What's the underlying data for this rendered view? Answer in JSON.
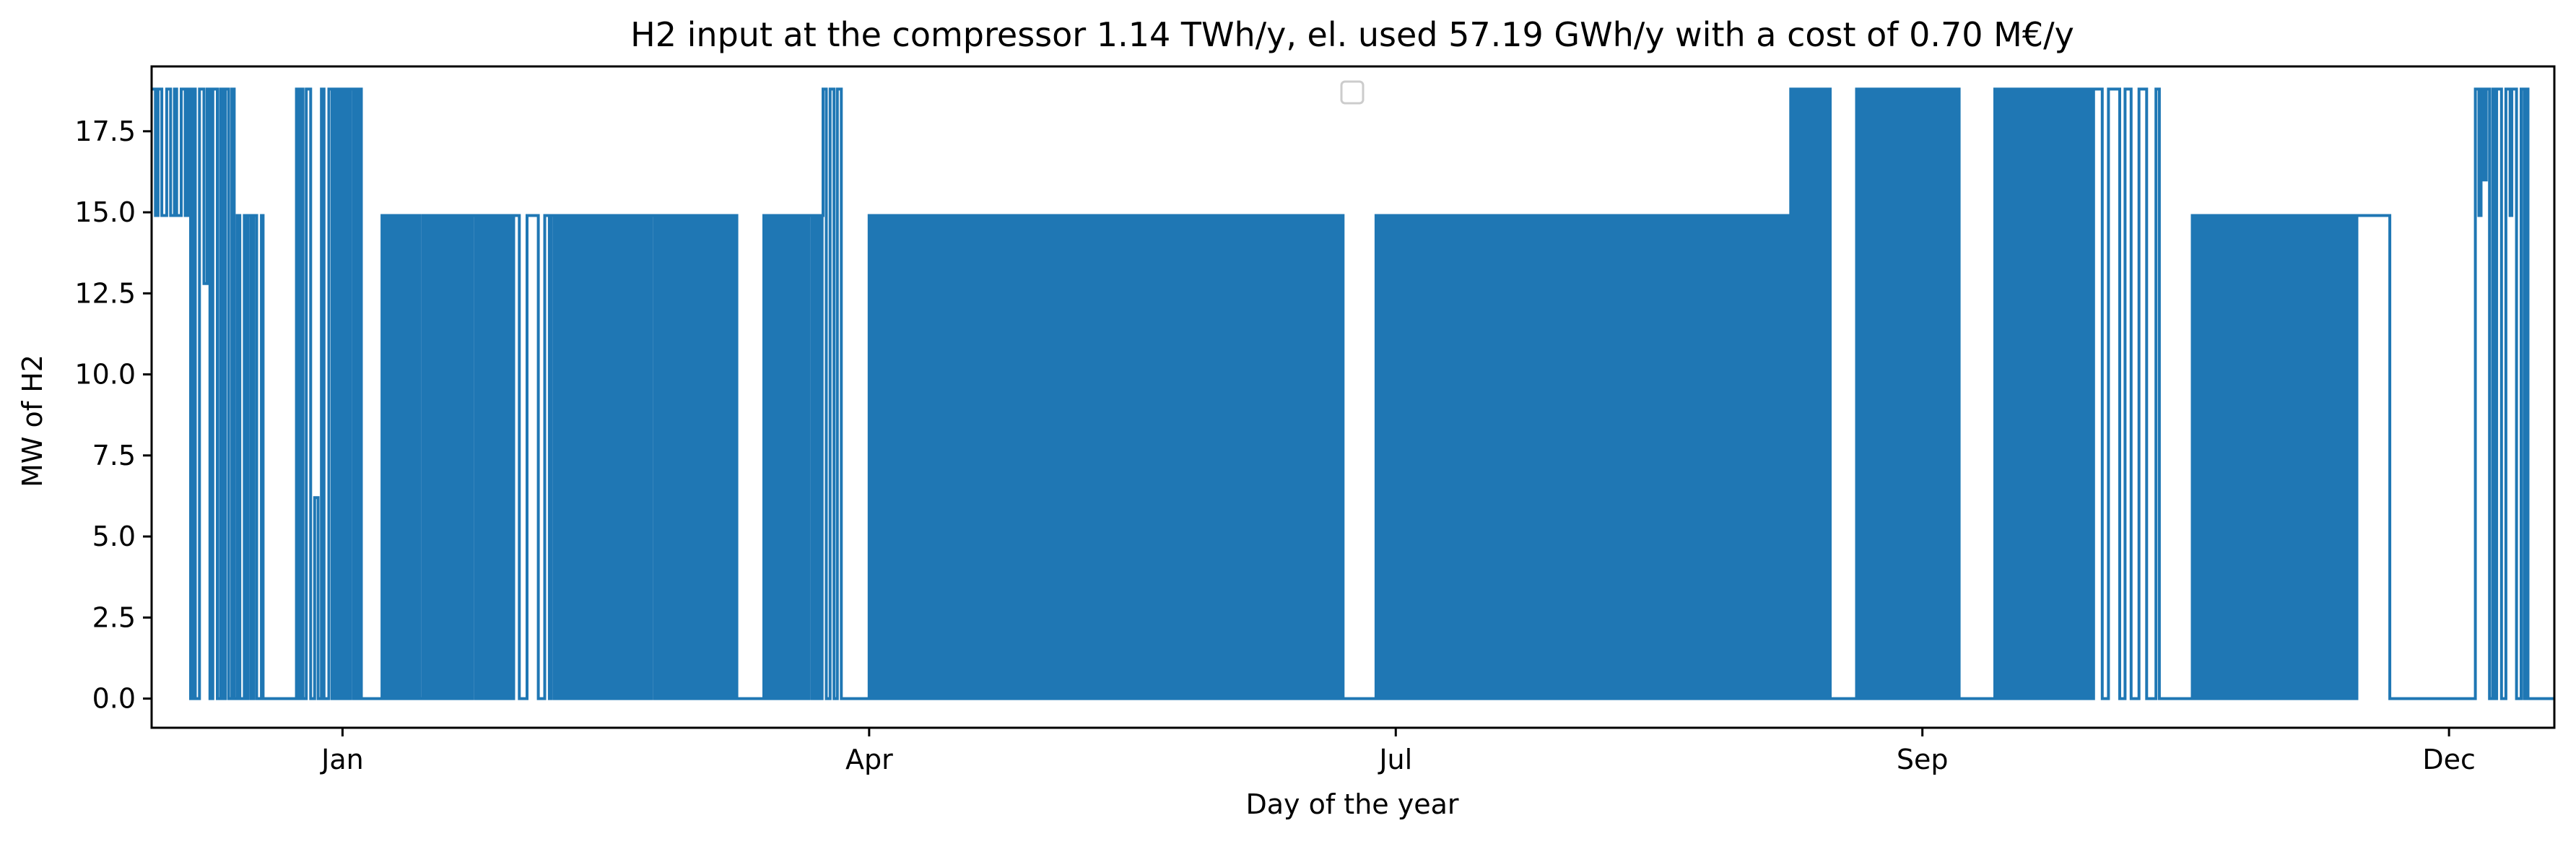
{
  "chart_data": {
    "type": "line",
    "title": "H2 input at the compressor 1.14 TWh/y, el. used 57.19 GWh/y with a cost of 0.70 M€/y",
    "xlabel": "Day of the year",
    "ylabel": "MW of H2",
    "x_unit": "day of year",
    "xlim": [
      -5,
      360
    ],
    "ylim": [
      -0.9,
      19.5
    ],
    "x_ticks": [
      {
        "label": "Jan",
        "value": 24
      },
      {
        "label": "Apr",
        "value": 104
      },
      {
        "label": "Jul",
        "value": 184
      },
      {
        "label": "Sep",
        "value": 264
      },
      {
        "label": "Dec",
        "value": 344
      }
    ],
    "y_ticks": [
      0.0,
      2.5,
      5.0,
      7.5,
      10.0,
      12.5,
      15.0,
      17.5
    ],
    "y_tick_labels": [
      "0.0",
      "2.5",
      "5.0",
      "7.5",
      "10.0",
      "12.5",
      "15.0",
      "17.5"
    ],
    "grid": false,
    "legend": {
      "position": "top-center",
      "entries": []
    },
    "series": [
      {
        "color": "#1f77b4",
        "levels": {
          "off": 0.0,
          "base": 14.9,
          "peak": 18.8
        },
        "segments": [
          {
            "x": [
              -5,
              0.5
            ],
            "mode": "toggle",
            "high": 18.8,
            "low": 14.9
          },
          {
            "x": [
              0.5,
              8
            ],
            "mode": "spiky",
            "high": 18.8,
            "low": 0.0,
            "extra": [
              12.8,
              14.9,
              4.8,
              3.3,
              0.8
            ]
          },
          {
            "x": [
              8,
              12
            ],
            "mode": "spiky",
            "high": 14.9,
            "low": 0.0,
            "extra": [
              13.4,
              10.2,
              6.2
            ]
          },
          {
            "x": [
              12,
              17
            ],
            "mode": "flat",
            "value": 0.0
          },
          {
            "x": [
              17,
              22
            ],
            "mode": "spiky",
            "high": 18.8,
            "low": 0.0,
            "extra": [
              6.2,
              1.0,
              17.0,
              8.1
            ]
          },
          {
            "x": [
              22,
              27
            ],
            "mode": "dense",
            "high": 18.8,
            "low": 0.0
          },
          {
            "x": [
              27,
              30
            ],
            "mode": "flat",
            "value": 0.0
          },
          {
            "x": [
              30,
              50
            ],
            "mode": "dense",
            "high": 14.9,
            "low": 0.0
          },
          {
            "x": [
              50,
              55
            ],
            "mode": "sparse",
            "high": 14.9,
            "low": 0.0
          },
          {
            "x": [
              55,
              75
            ],
            "mode": "dense",
            "high": 14.9,
            "low": 0.0
          },
          {
            "x": [
              75,
              84
            ],
            "mode": "dense",
            "high": 14.9,
            "low": 0.0
          },
          {
            "x": [
              84,
              88
            ],
            "mode": "flat",
            "value": 0.0
          },
          {
            "x": [
              88,
              97
            ],
            "mode": "dense",
            "high": 14.9,
            "low": 0.0
          },
          {
            "x": [
              97,
              100
            ],
            "mode": "spiky",
            "high": 18.8,
            "low": 0.0,
            "extra": [
              6.2,
              9.7
            ]
          },
          {
            "x": [
              100,
              104
            ],
            "mode": "flat",
            "value": 0.0
          },
          {
            "x": [
              104,
              120
            ],
            "mode": "solid",
            "high": 14.9,
            "low": 0.0
          },
          {
            "x": [
              120,
              128
            ],
            "mode": "dense",
            "high": 14.9,
            "low": 0.0
          },
          {
            "x": [
              128,
              176
            ],
            "mode": "solid",
            "high": 14.9,
            "low": 0.0
          },
          {
            "x": [
              176,
              181
            ],
            "mode": "flat",
            "value": 0.0
          },
          {
            "x": [
              181,
              244
            ],
            "mode": "solid",
            "high": 14.9,
            "low": 0.0
          },
          {
            "x": [
              244,
              250
            ],
            "mode": "dense",
            "high": 18.8,
            "low": 0.0
          },
          {
            "x": [
              250,
              254
            ],
            "mode": "flat",
            "value": 0.0
          },
          {
            "x": [
              254,
              264
            ],
            "mode": "dense",
            "high": 18.8,
            "low": 0.0
          },
          {
            "x": [
              264,
              270
            ],
            "mode": "dense",
            "high": 18.8,
            "low": 0.0
          },
          {
            "x": [
              270,
              275
            ],
            "mode": "flat",
            "value": 0.0
          },
          {
            "x": [
              275,
              290
            ],
            "mode": "dense",
            "high": 18.8,
            "low": 0.0
          },
          {
            "x": [
              290,
              300
            ],
            "mode": "sparse",
            "high": 18.8,
            "low": 0.0
          },
          {
            "x": [
              300,
              305
            ],
            "mode": "flat",
            "value": 0.0
          },
          {
            "x": [
              305,
              330
            ],
            "mode": "dense",
            "high": 14.9,
            "low": 0.0
          },
          {
            "x": [
              330,
              335
            ],
            "mode": "flat",
            "value": 14.9
          },
          {
            "x": [
              335,
              348
            ],
            "mode": "flat",
            "value": 0.0
          },
          {
            "x": [
              348,
              356
            ],
            "mode": "spiky",
            "high": 18.8,
            "low": 0.0,
            "extra": [
              14.9,
              16.0
            ]
          },
          {
            "x": [
              356,
              360
            ],
            "mode": "flat",
            "value": 0.0
          }
        ]
      }
    ]
  }
}
